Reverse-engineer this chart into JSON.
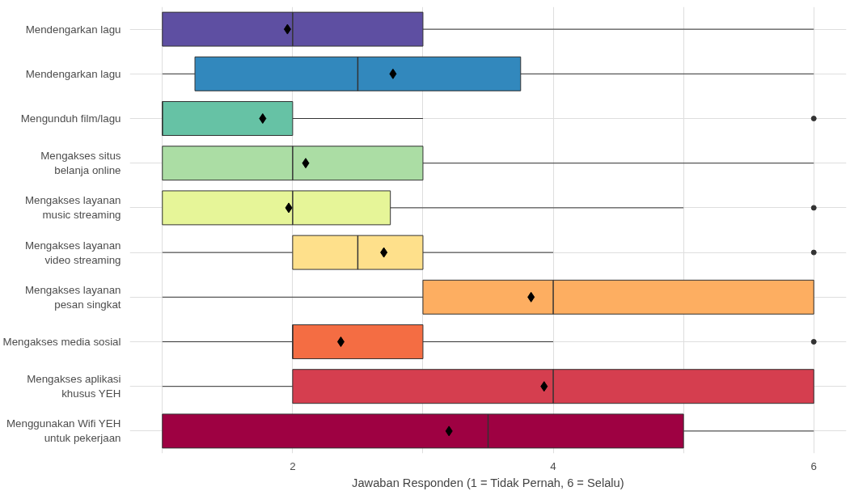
{
  "chart_data": {
    "type": "box",
    "orientation": "horizontal",
    "xlabel": "Jawaban Responden (1 = Tidak Pernah, 6 = Selalu)",
    "categories": [
      "Mendengarkan lagu",
      "Mendengarkan lagu",
      "Mengunduh film/lagu",
      "Mengakses situs\nbelanja online",
      "Mengakses layanan\nmusic streaming",
      "Mengakses layanan\nvideo streaming",
      "Mengakses layanan\npesan singkat",
      "Mengakses media sosial",
      "Mengakses aplikasi\nkhusus YEH",
      "Menggunakan Wifi YEH\nuntuk pekerjaan"
    ],
    "colors": [
      "#5e4fa2",
      "#3288bd",
      "#66c2a5",
      "#abdda4",
      "#e6f598",
      "#fee08b",
      "#fdae61",
      "#f46d43",
      "#d53e4f",
      "#9e0142"
    ],
    "boxes": [
      {
        "low": 1,
        "q1": 1,
        "median": 2,
        "q3": 3,
        "high": 6,
        "mean": 1.96
      },
      {
        "low": 1,
        "q1": 1.25,
        "median": 2.5,
        "q3": 3.75,
        "high": 6,
        "mean": 2.77
      },
      {
        "low": 1,
        "q1": 1,
        "median": 1,
        "q3": 2,
        "high": 3,
        "mean": 1.77,
        "outliers": [
          6
        ]
      },
      {
        "low": 1,
        "q1": 1,
        "median": 2,
        "q3": 3,
        "high": 6,
        "mean": 2.1
      },
      {
        "low": 1,
        "q1": 1,
        "median": 2,
        "q3": 2.75,
        "high": 5,
        "mean": 1.97,
        "outliers": [
          6
        ]
      },
      {
        "low": 1,
        "q1": 2,
        "median": 2.5,
        "q3": 3,
        "high": 4,
        "mean": 2.7,
        "outliers": [
          6
        ]
      },
      {
        "low": 1,
        "q1": 3,
        "median": 4,
        "q3": 6,
        "high": 6,
        "mean": 3.83
      },
      {
        "low": 1,
        "q1": 2,
        "median": 2,
        "q3": 3,
        "high": 4,
        "mean": 2.37,
        "outliers": [
          6
        ]
      },
      {
        "low": 1,
        "q1": 2,
        "median": 4,
        "q3": 6,
        "high": 6,
        "mean": 3.93
      },
      {
        "low": 1,
        "q1": 1,
        "median": 3.5,
        "q3": 5,
        "high": 6,
        "mean": 3.2
      }
    ],
    "xlim": [
      0.75,
      6.25
    ],
    "xticks": [
      {
        "value": 1,
        "label": null
      },
      2,
      {
        "value": 3,
        "label": null
      },
      4,
      {
        "value": 5,
        "label": null
      },
      6
    ],
    "grid": true,
    "marker": "diamond"
  }
}
